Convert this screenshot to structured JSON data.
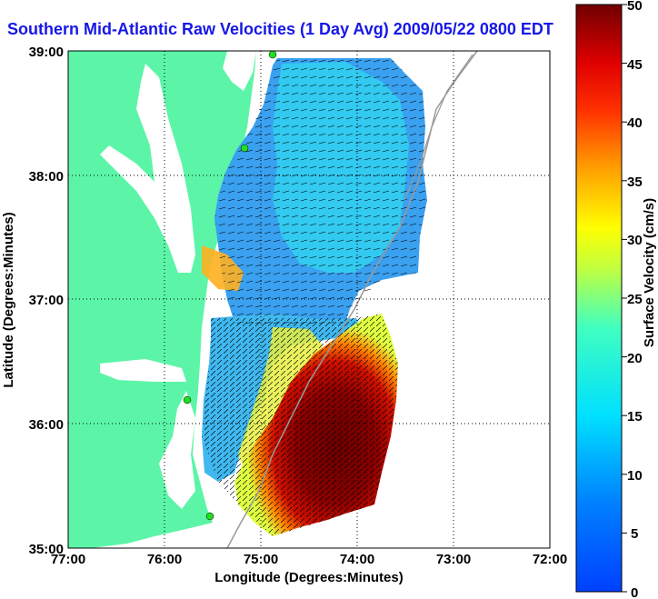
{
  "title": "Southern Mid-Atlantic Raw Velocities (1 Day Avg) 2009/05/22 0800 EDT",
  "xaxis": {
    "label": "Longitude (Degrees:Minutes)",
    "ticks": [
      "77:00",
      "76:00",
      "75:00",
      "74:00",
      "73:00",
      "72:00"
    ]
  },
  "yaxis": {
    "label": "Latitude (Degrees:Minutes)",
    "ticks": [
      "39:00",
      "38:00",
      "37:00",
      "36:00",
      "35:00"
    ]
  },
  "colorbar": {
    "label": "Surface Velocity (cm/s)",
    "ticks": [
      "50",
      "45",
      "40",
      "35",
      "30",
      "25",
      "20",
      "15",
      "10",
      "5",
      "0"
    ],
    "min": 0,
    "max": 50
  },
  "colors": {
    "land": "#5cf5a8",
    "water": "#ffffff",
    "title": "#1717e8",
    "station": "#22dd22"
  },
  "map_extent": {
    "lon": [
      -77,
      -72
    ],
    "lat": [
      35,
      39
    ]
  },
  "velocity_field_summary": {
    "northern_region_range_cm_s": [
      5,
      15
    ],
    "southern_region_range_cm_s": [
      30,
      50
    ]
  }
}
